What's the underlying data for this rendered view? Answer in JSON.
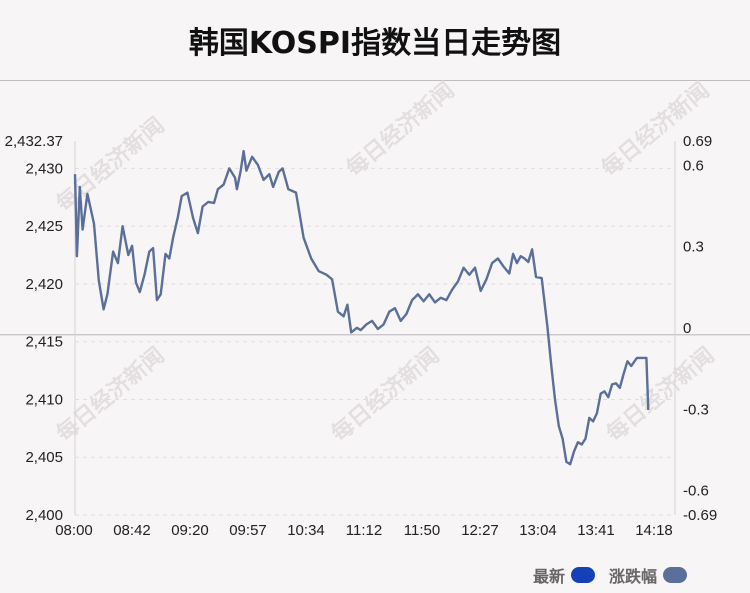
{
  "title": "韩国KOSPI指数当日走势图",
  "watermark": "每日经济新闻",
  "legend": {
    "latest": {
      "label": "最新",
      "color": "#1540b8"
    },
    "change": {
      "label": "涨跌幅",
      "color": "#5a6f99"
    }
  },
  "chart_data": {
    "type": "line",
    "title": "韩国KOSPI指数当日走势图",
    "line_color": "#5a6f99",
    "x_tick_labels": [
      "08:00",
      "08:42",
      "09:20",
      "09:57",
      "10:34",
      "11:12",
      "11:50",
      "12:27",
      "13:04",
      "13:41",
      "14:18"
    ],
    "y_left": {
      "min": 2400,
      "max": 2432.37,
      "ticks": [
        2400,
        2405,
        2410,
        2415,
        2420,
        2425,
        2430
      ],
      "top_label": "2,432.37"
    },
    "y_right": {
      "min": -0.69,
      "max": 0.69,
      "ticks": [
        -0.69,
        -0.6,
        -0.3,
        0,
        0.3,
        0.6,
        0.69
      ]
    },
    "base_value": 2415.6,
    "grid": "dashed horizontal",
    "series": [
      {
        "values": [
          [
            0,
            2429.5
          ],
          [
            2,
            2422.4
          ],
          [
            5,
            2428.4
          ],
          [
            8,
            2424.7
          ],
          [
            13,
            2427.8
          ],
          [
            20,
            2425.2
          ],
          [
            25,
            2420.3
          ],
          [
            30,
            2417.8
          ],
          [
            34,
            2419.1
          ],
          [
            40,
            2422.8
          ],
          [
            45,
            2421.8
          ],
          [
            50,
            2425.0
          ],
          [
            56,
            2422.5
          ],
          [
            60,
            2423.3
          ],
          [
            64,
            2420.1
          ],
          [
            68,
            2419.3
          ],
          [
            73,
            2420.8
          ],
          [
            78,
            2422.8
          ],
          [
            82,
            2423.1
          ],
          [
            86,
            2418.6
          ],
          [
            90,
            2419.1
          ],
          [
            95,
            2422.6
          ],
          [
            99,
            2422.2
          ],
          [
            103,
            2424.0
          ],
          [
            108,
            2425.8
          ],
          [
            112,
            2427.6
          ],
          [
            118,
            2427.9
          ],
          [
            124,
            2425.7
          ],
          [
            129,
            2424.4
          ],
          [
            134,
            2426.7
          ],
          [
            140,
            2427.1
          ],
          [
            146,
            2427.0
          ],
          [
            150,
            2428.2
          ],
          [
            156,
            2428.6
          ],
          [
            162,
            2430.0
          ],
          [
            168,
            2429.2
          ],
          [
            170,
            2428.2
          ],
          [
            174,
            2429.8
          ],
          [
            177,
            2431.5
          ],
          [
            180,
            2429.8
          ],
          [
            186,
            2431.0
          ],
          [
            192,
            2430.3
          ],
          [
            198,
            2429.0
          ],
          [
            204,
            2429.5
          ],
          [
            208,
            2428.4
          ],
          [
            214,
            2429.7
          ],
          [
            218,
            2430.0
          ],
          [
            224,
            2428.2
          ],
          [
            232,
            2427.9
          ],
          [
            240,
            2424.0
          ],
          [
            248,
            2422.2
          ],
          [
            256,
            2421.1
          ],
          [
            264,
            2420.8
          ],
          [
            270,
            2420.4
          ],
          [
            276,
            2417.6
          ],
          [
            282,
            2417.2
          ],
          [
            286,
            2418.2
          ],
          [
            290,
            2415.8
          ],
          [
            296,
            2416.2
          ],
          [
            300,
            2416.0
          ],
          [
            306,
            2416.5
          ],
          [
            312,
            2416.8
          ],
          [
            318,
            2416.1
          ],
          [
            324,
            2416.5
          ],
          [
            330,
            2417.6
          ],
          [
            336,
            2417.9
          ],
          [
            342,
            2416.8
          ],
          [
            348,
            2417.4
          ],
          [
            354,
            2418.6
          ],
          [
            360,
            2419.1
          ],
          [
            366,
            2418.5
          ],
          [
            372,
            2419.1
          ],
          [
            378,
            2418.4
          ],
          [
            384,
            2418.8
          ],
          [
            390,
            2418.6
          ],
          [
            396,
            2419.5
          ],
          [
            402,
            2420.2
          ],
          [
            408,
            2421.4
          ],
          [
            414,
            2420.8
          ],
          [
            420,
            2421.4
          ],
          [
            426,
            2419.4
          ],
          [
            432,
            2420.4
          ],
          [
            438,
            2421.8
          ],
          [
            444,
            2422.2
          ],
          [
            450,
            2421.5
          ],
          [
            456,
            2420.9
          ],
          [
            460,
            2422.6
          ],
          [
            464,
            2421.8
          ],
          [
            468,
            2422.4
          ],
          [
            472,
            2422.2
          ],
          [
            476,
            2421.9
          ],
          [
            480,
            2423.0
          ],
          [
            484,
            2420.6
          ],
          [
            490,
            2420.5
          ],
          [
            496,
            2416.3
          ],
          [
            500,
            2413.0
          ],
          [
            504,
            2410.0
          ],
          [
            508,
            2407.7
          ],
          [
            512,
            2406.6
          ],
          [
            516,
            2404.6
          ],
          [
            520,
            2404.4
          ],
          [
            524,
            2405.5
          ],
          [
            528,
            2406.3
          ],
          [
            532,
            2406.1
          ],
          [
            536,
            2406.6
          ],
          [
            540,
            2408.4
          ],
          [
            544,
            2408.1
          ],
          [
            548,
            2408.8
          ],
          [
            552,
            2410.5
          ],
          [
            556,
            2410.7
          ],
          [
            560,
            2410.2
          ],
          [
            564,
            2411.3
          ],
          [
            568,
            2411.4
          ],
          [
            572,
            2411.0
          ],
          [
            576,
            2412.2
          ],
          [
            580,
            2413.3
          ],
          [
            584,
            2412.9
          ],
          [
            590,
            2413.6
          ],
          [
            596,
            2413.6
          ],
          [
            600,
            2413.6
          ],
          [
            602,
            2409.1
          ]
        ]
      }
    ],
    "x_max": 630
  }
}
